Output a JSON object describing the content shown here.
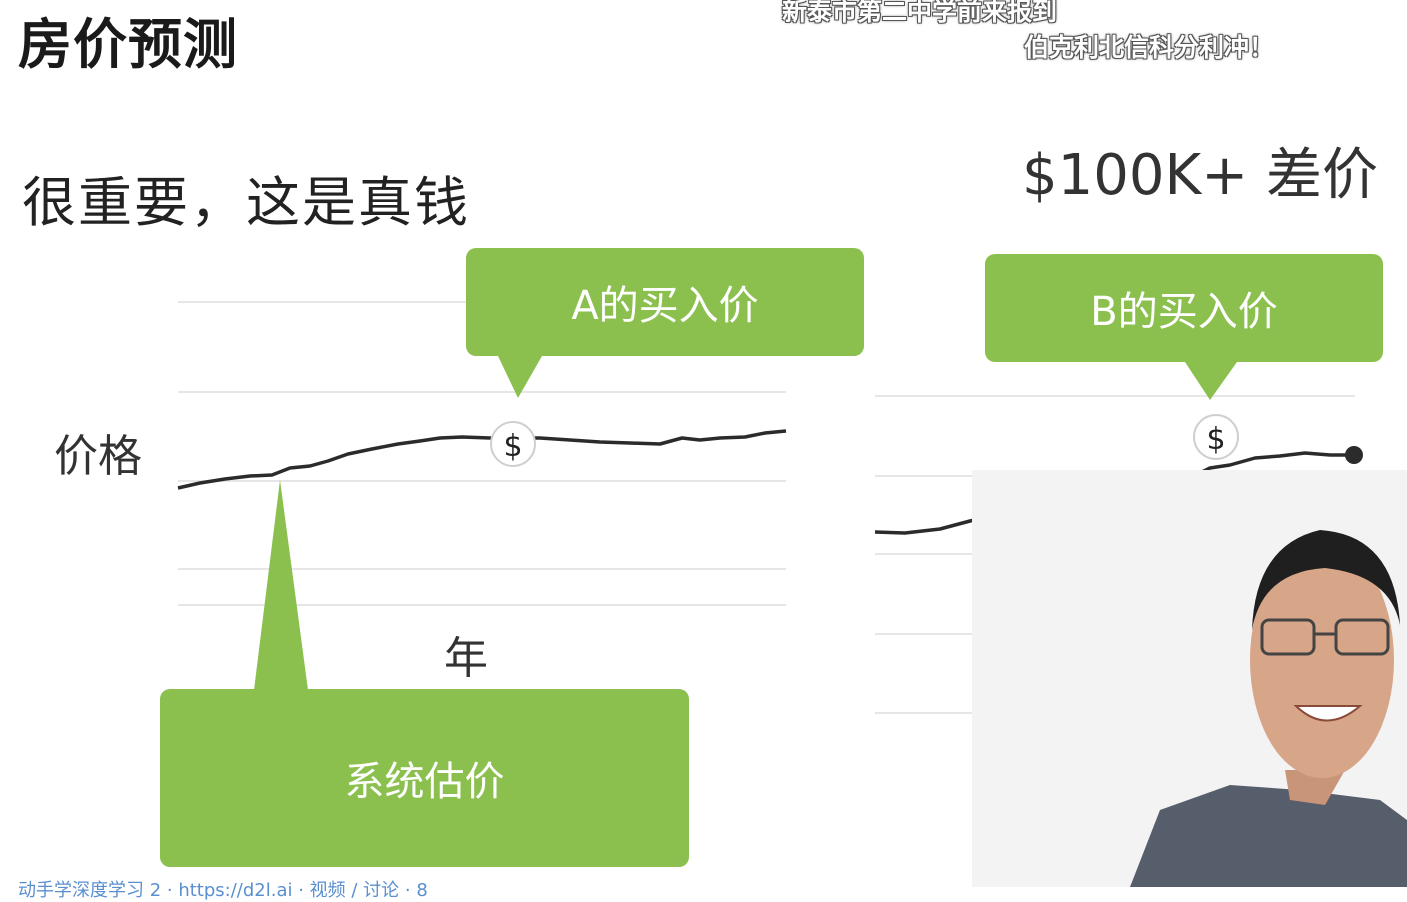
{
  "slide": {
    "title": "房价预测",
    "subtitle": "很重要，这是真钱",
    "headline": "$100K+ 差价",
    "y_axis_label": "价格",
    "x_axis_label": "年",
    "callout_a": "A的买入价",
    "callout_b": "B的买入价",
    "callout_system": "系统估价",
    "price_marker_symbol": "$"
  },
  "danmaku": [
    "新泰市第二中学前来报到",
    "伯克利北信科分利冲！"
  ],
  "footer": {
    "partial_text": "动手学深度学习 2 · https://d2l.ai · 视频 / 讨论 · 8"
  },
  "colors": {
    "callout_green": "#8bc04f",
    "gridline": "#e6e6e6",
    "line": "#2b2b2b"
  }
}
